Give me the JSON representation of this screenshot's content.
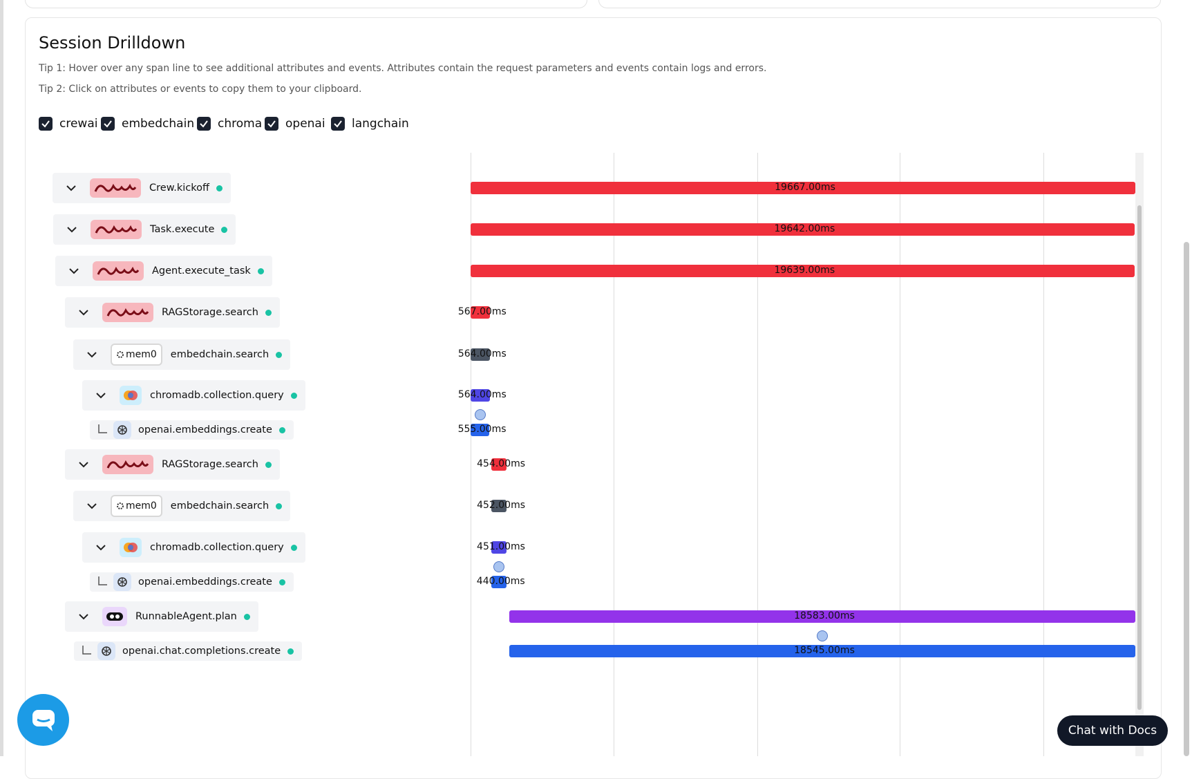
{
  "header": {
    "title": "Session Drilldown",
    "tips": [
      "Tip 1: Hover over any span line to see additional attributes and events. Attributes contain the request parameters and events contain logs and errors.",
      "Tip 2: Click on attributes or events to copy them to your clipboard."
    ]
  },
  "filters": [
    {
      "label": "crewai",
      "checked": true
    },
    {
      "label": "embedchain",
      "checked": true
    },
    {
      "label": "chroma",
      "checked": true
    },
    {
      "label": "openai",
      "checked": true
    },
    {
      "label": "langchain",
      "checked": true
    }
  ],
  "spans": [
    {
      "name": "Crew.kickoff",
      "provider": "crewai",
      "duration_ms": 19667,
      "duration_label": "19667.00ms"
    },
    {
      "name": "Task.execute",
      "provider": "crewai",
      "duration_ms": 19642,
      "duration_label": "19642.00ms"
    },
    {
      "name": "Agent.execute_task",
      "provider": "crewai",
      "duration_ms": 19639,
      "duration_label": "19639.00ms"
    },
    {
      "name": "RAGStorage.search",
      "provider": "crewai",
      "duration_ms": 567,
      "duration_label": "567.00ms"
    },
    {
      "name": "embedchain.search",
      "provider": "mem0",
      "duration_ms": 564,
      "duration_label": "564.00ms"
    },
    {
      "name": "chromadb.collection.query",
      "provider": "chroma",
      "duration_ms": 564,
      "duration_label": "564.00ms"
    },
    {
      "name": "openai.embeddings.create",
      "provider": "openai",
      "duration_ms": 555,
      "duration_label": "555.00ms"
    },
    {
      "name": "RAGStorage.search",
      "provider": "crewai",
      "duration_ms": 454,
      "duration_label": "454.00ms"
    },
    {
      "name": "embedchain.search",
      "provider": "mem0",
      "duration_ms": 452,
      "duration_label": "452.00ms"
    },
    {
      "name": "chromadb.collection.query",
      "provider": "chroma",
      "duration_ms": 451,
      "duration_label": "451.00ms"
    },
    {
      "name": "openai.embeddings.create",
      "provider": "openai",
      "duration_ms": 440,
      "duration_label": "440.00ms"
    },
    {
      "name": "RunnableAgent.plan",
      "provider": "langchain",
      "duration_ms": 18583,
      "duration_label": "18583.00ms"
    },
    {
      "name": "openai.chat.completions.create",
      "provider": "openai",
      "duration_ms": 18545,
      "duration_label": "18545.00ms"
    }
  ],
  "chat_button": "Chat with Docs"
}
